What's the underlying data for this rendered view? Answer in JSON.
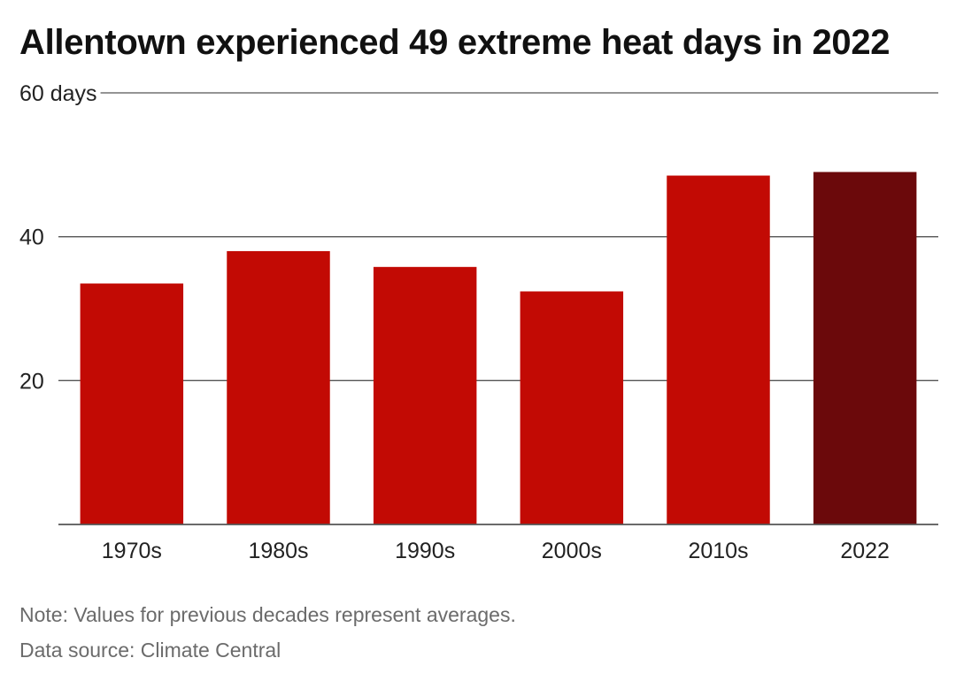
{
  "chart_data": {
    "type": "bar",
    "title": "Allentown experienced 49 extreme heat days in 2022",
    "categories": [
      "1970s",
      "1980s",
      "1990s",
      "2000s",
      "2010s",
      "2022"
    ],
    "values": [
      33.5,
      38.0,
      35.8,
      32.4,
      48.5,
      49
    ],
    "ylim": [
      0,
      60
    ],
    "yticks": [
      20,
      40,
      60
    ],
    "ytick_labels": [
      "20",
      "40",
      "60 days"
    ],
    "grid": true,
    "xlabel": "",
    "ylabel": "",
    "colors": {
      "bar": "#c20a04",
      "highlight_bar": "#6b090b",
      "gridline": "#555555",
      "baseline": "#555555"
    },
    "highlight_category": "2022"
  },
  "notes": {
    "note": "Note: Values for previous decades represent averages.",
    "source": "Data source: Climate Central"
  }
}
